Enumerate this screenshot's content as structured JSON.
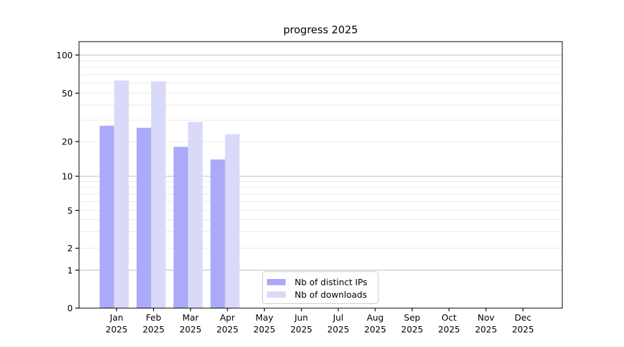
{
  "chart_data": {
    "type": "bar",
    "title": "progress 2025",
    "xlabel": "",
    "ylabel": "",
    "year_label": "2025",
    "months": [
      "Jan",
      "Feb",
      "Mar",
      "Apr",
      "May",
      "Jun",
      "Jul",
      "Aug",
      "Sep",
      "Oct",
      "Nov",
      "Dec"
    ],
    "categories": [
      "Jan 2025",
      "Feb 2025",
      "Mar 2025",
      "Apr 2025",
      "May 2025",
      "Jun 2025",
      "Jul 2025",
      "Aug 2025",
      "Sep 2025",
      "Oct 2025",
      "Nov 2025",
      "Dec 2025"
    ],
    "series": [
      {
        "name": "Nb of distinct IPs",
        "color": "#aaaaf8",
        "values": [
          27,
          26,
          18,
          14,
          null,
          null,
          null,
          null,
          null,
          null,
          null,
          null
        ]
      },
      {
        "name": "Nb of downloads",
        "color": "#d9d9f9",
        "values": [
          63,
          62,
          29,
          23,
          null,
          null,
          null,
          null,
          null,
          null,
          null,
          null
        ]
      }
    ],
    "y_ticks": [
      0,
      1,
      2,
      5,
      10,
      20,
      50,
      100
    ],
    "ylim": [
      0,
      130
    ],
    "yscale": "symlog",
    "grid": "horizontal major (1,10,100) + log minor gridlines",
    "legend_position": "lower center, inside axes"
  },
  "colors": {
    "bar_distinct_ips": "#aaaaf8",
    "bar_downloads": "#d9d9f9",
    "major_grid": "#bcbcbc",
    "minor_grid": "#e9e9e9",
    "spine": "#000000",
    "text": "#000000",
    "legend_border": "#cccccc"
  }
}
